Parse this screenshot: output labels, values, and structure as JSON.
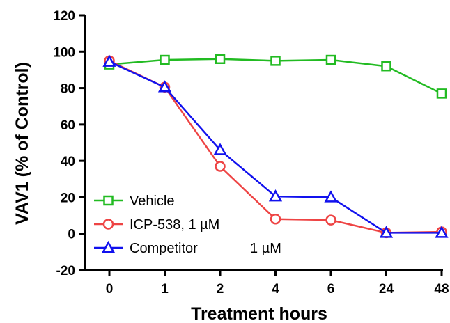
{
  "chart_data": {
    "type": "line",
    "title": "",
    "xlabel": "Treatment hours",
    "ylabel": "VAV1 (% of Control)",
    "categories": [
      "0",
      "1",
      "2",
      "4",
      "6",
      "24",
      "48"
    ],
    "ylim": [
      -20,
      120
    ],
    "yticks": [
      "-20",
      "0",
      "20",
      "40",
      "60",
      "80",
      "100",
      "120"
    ],
    "grid": false,
    "legend_position": "bottom-left",
    "series": [
      {
        "name": "Vehicle",
        "values": [
          93,
          95.5,
          96,
          95,
          95.5,
          92,
          77
        ],
        "color": "#22bb22",
        "marker": "square"
      },
      {
        "name": "ICP-538,  1 µM",
        "values": [
          95,
          80.5,
          37,
          8,
          7.5,
          0.5,
          1
        ],
        "color": "#ee4444",
        "marker": "circle"
      },
      {
        "name": "Competitor",
        "values": [
          94.5,
          80.5,
          46,
          20.5,
          20,
          0.5,
          0.5
        ],
        "color": "#1111ee",
        "marker": "triangle"
      }
    ],
    "legend_extra_label": "1 µM"
  }
}
